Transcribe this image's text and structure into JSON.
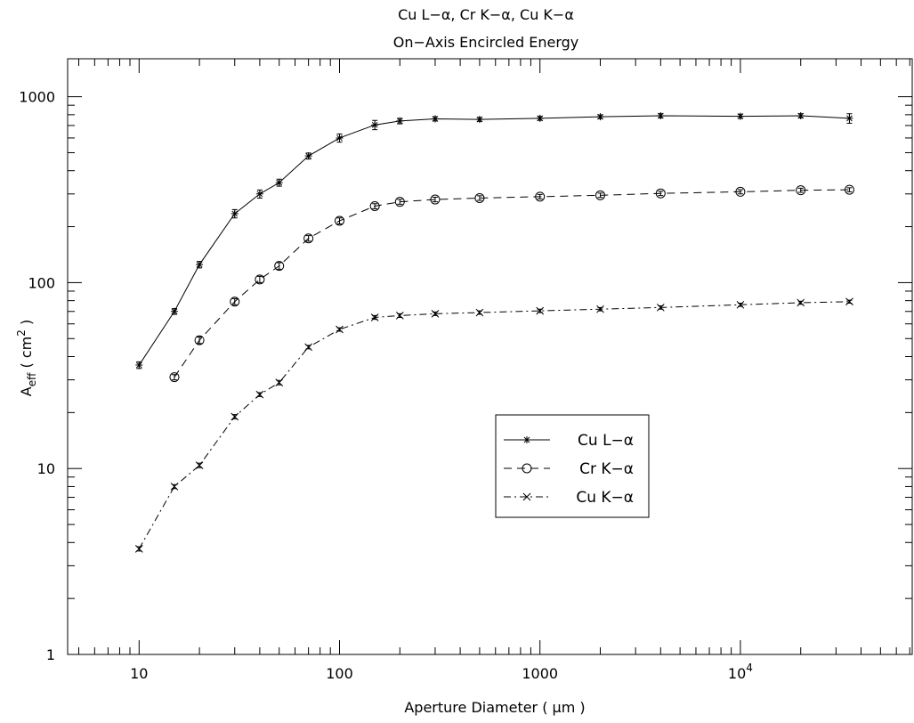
{
  "chart_data": {
    "type": "line",
    "title": "Cu L−α, Cr K−α, Cu K−α",
    "subtitle": "On−Axis Encircled Energy",
    "xlabel": "Aperture Diameter ( μm )",
    "ylabel": {
      "base": "A",
      "sub": "eff",
      "rest": " ( cm",
      "sup": "2",
      "end": " )"
    },
    "xscale": "log",
    "yscale": "log",
    "xlim": [
      4.4,
      72000
    ],
    "ylim": [
      1,
      1600
    ],
    "xticks": [
      {
        "value": 10,
        "label": "10"
      },
      {
        "value": 100,
        "label": "100"
      },
      {
        "value": 1000,
        "label": "1000"
      },
      {
        "value": 10000,
        "label": "10",
        "sup": "4"
      }
    ],
    "yticks": [
      {
        "value": 1,
        "label": "1"
      },
      {
        "value": 10,
        "label": "10"
      },
      {
        "value": 100,
        "label": "100"
      },
      {
        "value": 1000,
        "label": "1000"
      }
    ],
    "legend_position": "center-right",
    "grid": false,
    "series": [
      {
        "name": "Cu L−α",
        "line_style": "solid",
        "marker": "asterisk",
        "points": [
          [
            10,
            36,
            1.5
          ],
          [
            15,
            70,
            2.5
          ],
          [
            20,
            125,
            5
          ],
          [
            30,
            235,
            12
          ],
          [
            40,
            300,
            15
          ],
          [
            50,
            345,
            15
          ],
          [
            70,
            480,
            18
          ],
          [
            100,
            600,
            30
          ],
          [
            150,
            705,
            40
          ],
          [
            200,
            740,
            25
          ],
          [
            300,
            760,
            20
          ],
          [
            500,
            755,
            18
          ],
          [
            1000,
            765,
            18
          ],
          [
            2000,
            780,
            18
          ],
          [
            4000,
            790,
            20
          ],
          [
            10000,
            785,
            20
          ],
          [
            20000,
            790,
            20
          ],
          [
            35000,
            765,
            45
          ]
        ]
      },
      {
        "name": "Cr K−α",
        "line_style": "dashed",
        "marker": "circle",
        "points": [
          [
            15,
            31,
            1
          ],
          [
            20,
            49,
            2
          ],
          [
            30,
            79,
            3
          ],
          [
            40,
            104,
            4
          ],
          [
            50,
            123,
            5
          ],
          [
            70,
            173,
            6
          ],
          [
            100,
            215,
            8
          ],
          [
            150,
            258,
            8
          ],
          [
            200,
            272,
            8
          ],
          [
            300,
            280,
            8
          ],
          [
            500,
            285,
            8
          ],
          [
            1000,
            290,
            8
          ],
          [
            2000,
            295,
            8
          ],
          [
            4000,
            302,
            8
          ],
          [
            10000,
            308,
            8
          ],
          [
            20000,
            314,
            8
          ],
          [
            35000,
            316,
            8
          ]
        ]
      },
      {
        "name": "Cu K−α",
        "line_style": "dashdot",
        "marker": "x",
        "points": [
          [
            10,
            3.7,
            0.1
          ],
          [
            15,
            8.0,
            0.2
          ],
          [
            20,
            10.4,
            0.3
          ],
          [
            30,
            19,
            0.5
          ],
          [
            40,
            25,
            0.6
          ],
          [
            50,
            29,
            0.8
          ],
          [
            70,
            45,
            1
          ],
          [
            100,
            56,
            1.2
          ],
          [
            150,
            65,
            1.5
          ],
          [
            200,
            66.5,
            1.5
          ],
          [
            300,
            68,
            1.5
          ],
          [
            500,
            69,
            1.5
          ],
          [
            1000,
            70.5,
            1.5
          ],
          [
            2000,
            72,
            1.5
          ],
          [
            4000,
            73.5,
            1.5
          ],
          [
            10000,
            76,
            1.5
          ],
          [
            20000,
            78,
            1.5
          ],
          [
            35000,
            79,
            1.5
          ]
        ]
      }
    ]
  }
}
